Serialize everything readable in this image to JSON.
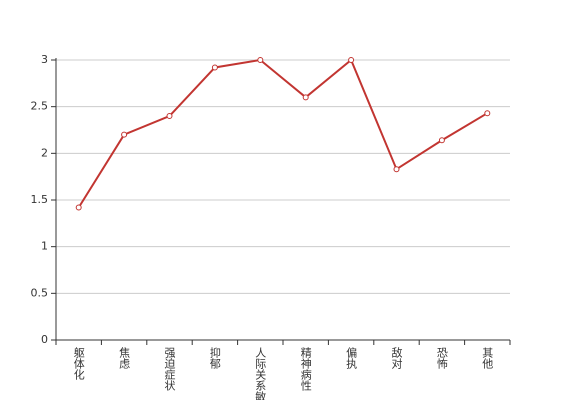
{
  "chart_data": {
    "type": "line",
    "categories": [
      "躯体化",
      "焦虑",
      "强迫症状",
      "抑郁",
      "人际关系敏感",
      "精神病性",
      "偏执",
      "敌对",
      "恐怖",
      "其他"
    ],
    "values": [
      1.42,
      2.2,
      2.4,
      2.92,
      3.0,
      2.6,
      3.0,
      1.83,
      2.14,
      2.43
    ],
    "color": "#c23531",
    "ylim": [
      0,
      3
    ],
    "yticks": [
      0,
      0.5,
      1,
      1.5,
      2,
      2.5,
      3
    ],
    "grid": true
  }
}
